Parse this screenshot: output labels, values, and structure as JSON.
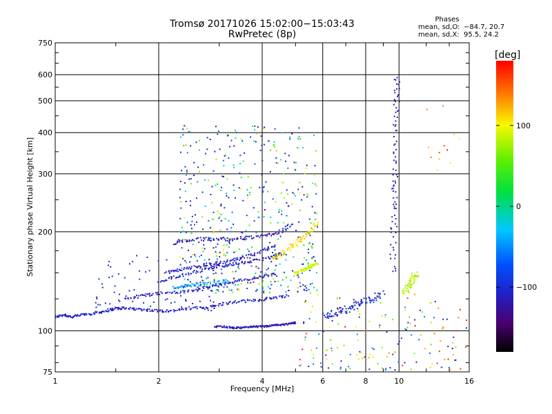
{
  "chart_data": {
    "type": "scatter",
    "title": "Tromsø 20171026 15:02:00−15:03:43",
    "subtitle": "RwPretec (8p)",
    "xlabel": "Frequency [MHz]",
    "ylabel": "Stationary phase Virtual Height [km]",
    "x_scale": "log",
    "y_scale": "log",
    "xlim": [
      1,
      16
    ],
    "ylim": [
      75,
      750
    ],
    "x_ticks": [
      1,
      2,
      4,
      6,
      8,
      10,
      16
    ],
    "x_tick_labels": [
      "1",
      "2",
      "4",
      "6",
      "8",
      "10",
      "16"
    ],
    "y_ticks": [
      75,
      100,
      200,
      300,
      400,
      500,
      600,
      750
    ],
    "y_tick_labels": [
      "75",
      "100",
      "200",
      "300",
      "400",
      "500",
      "600",
      "750"
    ],
    "grid": true,
    "phases_header": "Phases",
    "phase_stats": [
      {
        "label": "mean, sd,O:",
        "values": "−84.7, 20.7"
      },
      {
        "label": "mean, sd,X:",
        "values": "95.5, 24.2"
      }
    ],
    "colorbar": {
      "label": "[deg]",
      "range": [
        -180,
        180
      ],
      "ticks": [
        100,
        0,
        -100
      ],
      "tick_labels": [
        "100",
        "0",
        "−100"
      ],
      "colormap": "rainbow"
    },
    "traces": [
      {
        "x": [
          1.0,
          1.06,
          1.12,
          1.2,
          1.3,
          1.4,
          1.5,
          1.65,
          1.8,
          2.0,
          2.2,
          2.5,
          2.8,
          3.1,
          3.5,
          3.9,
          4.3,
          4.8
        ],
        "y": [
          110,
          112,
          110,
          112,
          113,
          115,
          117,
          117,
          116,
          115,
          115,
          117,
          118,
          121,
          123,
          124,
          126,
          128
        ],
        "phase": -110,
        "spread": 0.018
      },
      {
        "x": [
          1.6,
          1.8,
          2.0,
          2.3,
          2.6,
          2.9,
          3.2,
          3.6,
          4.0,
          4.4
        ],
        "y": [
          125,
          128,
          130,
          131,
          133,
          137,
          140,
          143,
          146,
          149
        ],
        "phase": -108,
        "spread": 0.02
      },
      {
        "x": [
          2.0,
          2.2,
          2.5,
          2.8,
          3.1,
          3.4,
          3.8,
          4.2,
          4.6
        ],
        "y": [
          140,
          145,
          150,
          155,
          158,
          160,
          163,
          167,
          172
        ],
        "phase": -110,
        "spread": 0.02
      },
      {
        "x": [
          2.1,
          2.3,
          2.6,
          2.9,
          3.2,
          3.6,
          4.0,
          4.4
        ],
        "y": [
          150,
          153,
          157,
          160,
          163,
          168,
          175,
          182
        ],
        "phase": -112,
        "spread": 0.02
      },
      {
        "x": [
          2.2,
          2.4,
          2.7,
          3.0,
          3.3,
          3.7,
          4.1,
          4.5,
          4.9
        ],
        "y": [
          185,
          188,
          190,
          190,
          190,
          192,
          195,
          200,
          210
        ],
        "phase": -115,
        "spread": 0.025
      },
      {
        "x": [
          2.2,
          2.4,
          2.6,
          2.9,
          3.2
        ],
        "y": [
          135,
          137,
          138,
          140,
          142
        ],
        "phase": -45,
        "spread": 0.02
      },
      {
        "x": [
          2.9,
          3.1,
          3.3,
          3.5,
          3.7,
          3.9,
          4.1,
          4.3,
          4.5,
          4.8,
          5.0
        ],
        "y": [
          103,
          103,
          102,
          102,
          103,
          103,
          103,
          104,
          104,
          105,
          106
        ],
        "phase": -115,
        "spread": 0.012
      },
      {
        "x": [
          4.3,
          4.6,
          4.9,
          5.2,
          5.5,
          5.8
        ],
        "y": [
          165,
          172,
          180,
          190,
          200,
          215
        ],
        "phase": 110,
        "spread": 0.03
      },
      {
        "x": [
          5.0,
          5.2,
          5.4,
          5.6,
          5.8
        ],
        "y": [
          150,
          152,
          155,
          158,
          160
        ],
        "phase": 90,
        "spread": 0.02
      },
      {
        "x": [
          9.6,
          9.65,
          9.7,
          9.75,
          9.8,
          9.85,
          9.9
        ],
        "y": [
          150,
          200,
          250,
          300,
          400,
          500,
          600
        ],
        "phase": -115,
        "spread": 0.04
      },
      {
        "x": [
          10.4,
          10.6,
          10.8,
          11.0,
          11.3
        ],
        "y": [
          130,
          135,
          140,
          145,
          150
        ],
        "phase": 80,
        "spread": 0.04
      },
      {
        "x": [
          6.0,
          6.4,
          6.8,
          7.2,
          7.6,
          8.0,
          8.5,
          9.0
        ],
        "y": [
          110,
          112,
          115,
          117,
          120,
          123,
          127,
          130
        ],
        "phase": -100,
        "spread": 0.05
      }
    ],
    "scattered_regions": [
      {
        "xlim": [
          2.3,
          5.8
        ],
        "ylim": [
          130,
          420
        ],
        "count": 520,
        "phases": [
          -115,
          -108,
          -100,
          -95,
          -60,
          -20,
          20,
          60,
          110
        ]
      },
      {
        "xlim": [
          1.3,
          3.0
        ],
        "ylim": [
          115,
          170
        ],
        "count": 90,
        "phases": [
          -115,
          -105,
          -95
        ]
      },
      {
        "xlim": [
          5.0,
          16.0
        ],
        "ylim": [
          76,
          130
        ],
        "count": 160,
        "phases": [
          -110,
          -60,
          60,
          100,
          130,
          170
        ]
      },
      {
        "xlim": [
          12.0,
          15.0
        ],
        "ylim": [
          300,
          550
        ],
        "count": 12,
        "phases": [
          100,
          130,
          170
        ]
      }
    ]
  }
}
